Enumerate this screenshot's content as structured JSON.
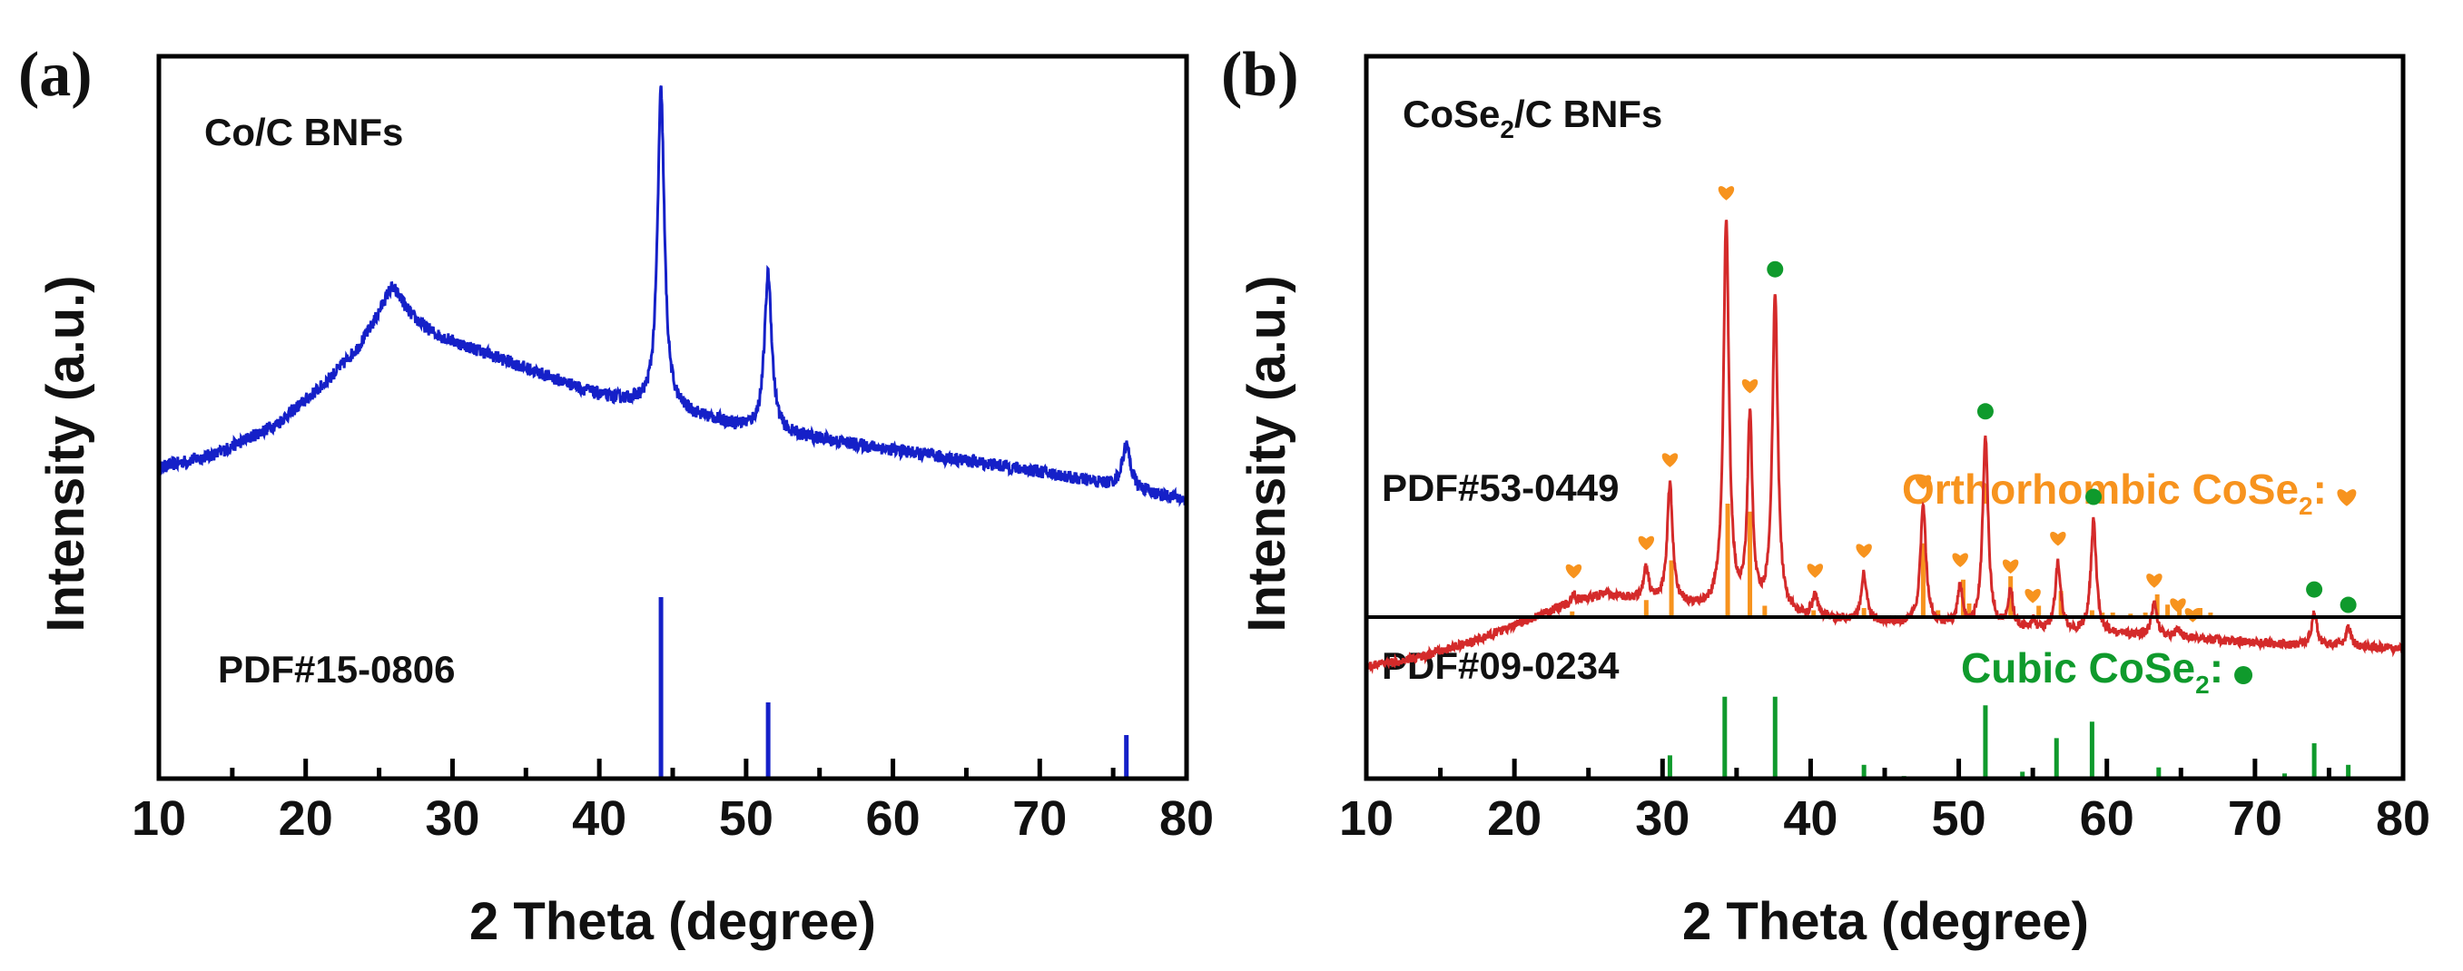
{
  "colors": {
    "co": "#1520c8",
    "cose2": "#d42a2a",
    "ortho": "#f7931e",
    "cubic": "#0f9a2c",
    "axis": "#000000"
  },
  "chart_data": [
    {
      "panel": "(a)",
      "type": "line",
      "sample_label": "Co/C BNFs",
      "xlabel": "2 Theta (degree)",
      "ylabel": "Intensity (a.u.)",
      "xlim": [
        10,
        80
      ],
      "xticks": [
        10,
        20,
        30,
        40,
        50,
        60,
        70,
        80
      ],
      "ylim": [
        0,
        1
      ],
      "series": [
        {
          "name": "Co/C BNFs",
          "color_key": "co",
          "background": [
            [
              10,
              0.43
            ],
            [
              14,
              0.45
            ],
            [
              18,
              0.49
            ],
            [
              21,
              0.54
            ],
            [
              23.5,
              0.59
            ],
            [
              25.8,
              0.65
            ],
            [
              27,
              0.63
            ],
            [
              29,
              0.61
            ],
            [
              32,
              0.59
            ],
            [
              36,
              0.56
            ],
            [
              40,
              0.53
            ],
            [
              43.5,
              0.515
            ],
            [
              45,
              0.51
            ],
            [
              48,
              0.495
            ],
            [
              51,
              0.48
            ],
            [
              55,
              0.47
            ],
            [
              60,
              0.455
            ],
            [
              65,
              0.44
            ],
            [
              70,
              0.425
            ],
            [
              75,
              0.405
            ],
            [
              80,
              0.385
            ]
          ],
          "peaks": [
            {
              "x": 26.0,
              "height": 0.03,
              "width": 1.2
            },
            {
              "x": 44.2,
              "height": 0.44,
              "width": 0.28
            },
            {
              "x": 51.5,
              "height": 0.22,
              "width": 0.3
            },
            {
              "x": 75.9,
              "height": 0.06,
              "width": 0.35
            }
          ],
          "noise": 0.009
        }
      ],
      "references": [
        {
          "label": "PDF#15-0806",
          "color_key": "co",
          "lines": [
            {
              "x": 44.2,
              "i": 1.0
            },
            {
              "x": 51.5,
              "i": 0.42
            },
            {
              "x": 75.9,
              "i": 0.24
            }
          ]
        }
      ]
    },
    {
      "panel": "(b)",
      "type": "line",
      "sample_label": "CoSe2/C BNFs",
      "sample_label_main": "CoSe",
      "sample_label_sub": "2",
      "sample_label_rest": "/C BNFs",
      "xlabel": "2 Theta (degree)",
      "ylabel": "Intensity (a.u.)",
      "xlim": [
        10,
        80
      ],
      "xticks": [
        10,
        20,
        30,
        40,
        50,
        60,
        70,
        80
      ],
      "ylim": [
        0,
        1
      ],
      "series": [
        {
          "name": "CoSe2/C BNFs",
          "color_key": "cose2",
          "background": [
            [
              10,
              0.155
            ],
            [
              14,
              0.17
            ],
            [
              18,
              0.195
            ],
            [
              21,
              0.22
            ],
            [
              23.5,
              0.24
            ],
            [
              26,
              0.255
            ],
            [
              29,
              0.245
            ],
            [
              33,
              0.235
            ],
            [
              38,
              0.225
            ],
            [
              45,
              0.215
            ],
            [
              55,
              0.205
            ],
            [
              65,
              0.195
            ],
            [
              72,
              0.185
            ],
            [
              80,
              0.18
            ]
          ],
          "peaks": [
            {
              "x": 24.0,
              "height": 0.012,
              "width": 0.2
            },
            {
              "x": 28.9,
              "height": 0.045,
              "width": 0.2
            },
            {
              "x": 30.5,
              "height": 0.165,
              "width": 0.22
            },
            {
              "x": 34.3,
              "height": 0.54,
              "width": 0.22
            },
            {
              "x": 35.9,
              "height": 0.265,
              "width": 0.2
            },
            {
              "x": 37.6,
              "height": 0.44,
              "width": 0.22
            },
            {
              "x": 40.3,
              "height": 0.03,
              "width": 0.2
            },
            {
              "x": 43.6,
              "height": 0.065,
              "width": 0.22
            },
            {
              "x": 47.6,
              "height": 0.165,
              "width": 0.22
            },
            {
              "x": 50.1,
              "height": 0.055,
              "width": 0.2
            },
            {
              "x": 51.8,
              "height": 0.265,
              "width": 0.22
            },
            {
              "x": 53.5,
              "height": 0.05,
              "width": 0.2
            },
            {
              "x": 55.0,
              "height": 0.012,
              "width": 0.2
            },
            {
              "x": 56.7,
              "height": 0.095,
              "width": 0.22
            },
            {
              "x": 59.1,
              "height": 0.155,
              "width": 0.22
            },
            {
              "x": 63.2,
              "height": 0.045,
              "width": 0.22
            },
            {
              "x": 64.8,
              "height": 0.012,
              "width": 0.2
            },
            {
              "x": 74.0,
              "height": 0.045,
              "width": 0.22
            },
            {
              "x": 76.3,
              "height": 0.025,
              "width": 0.22
            }
          ],
          "noise": 0.006
        }
      ],
      "references": [
        {
          "label": "PDF#53-0449",
          "phase_label": "Orthorhombic  CoSe",
          "phase_sub": "2",
          "phase_suffix": ":",
          "phase_marker": "heart",
          "color_key": "ortho",
          "lines": [
            {
              "x": 23.9,
              "i": 0.05
            },
            {
              "x": 28.9,
              "i": 0.15
            },
            {
              "x": 30.6,
              "i": 0.5
            },
            {
              "x": 34.4,
              "i": 1.0
            },
            {
              "x": 35.9,
              "i": 0.93
            },
            {
              "x": 36.9,
              "i": 0.1
            },
            {
              "x": 40.2,
              "i": 0.06
            },
            {
              "x": 43.6,
              "i": 0.08
            },
            {
              "x": 47.6,
              "i": 0.65
            },
            {
              "x": 48.6,
              "i": 0.06
            },
            {
              "x": 50.3,
              "i": 0.33
            },
            {
              "x": 50.7,
              "i": 0.12
            },
            {
              "x": 53.5,
              "i": 0.36
            },
            {
              "x": 55.4,
              "i": 0.1
            },
            {
              "x": 56.9,
              "i": 0.23
            },
            {
              "x": 59.0,
              "i": 0.06
            },
            {
              "x": 59.7,
              "i": 0.04
            },
            {
              "x": 60.4,
              "i": 0.04
            },
            {
              "x": 61.6,
              "i": 0.03
            },
            {
              "x": 62.6,
              "i": 0.04
            },
            {
              "x": 63.4,
              "i": 0.2
            },
            {
              "x": 64.1,
              "i": 0.11
            },
            {
              "x": 64.9,
              "i": 0.09
            },
            {
              "x": 65.6,
              "i": 0.06
            },
            {
              "x": 66.3,
              "i": 0.08
            },
            {
              "x": 67.0,
              "i": 0.04
            }
          ]
        },
        {
          "label": "PDF#09-0234",
          "phase_label": "Cubic  CoSe",
          "phase_sub": "2",
          "phase_suffix": ":",
          "phase_marker": "dot",
          "color_key": "cubic",
          "lines": [
            {
              "x": 30.5,
              "i": 0.27
            },
            {
              "x": 34.2,
              "i": 0.95
            },
            {
              "x": 37.6,
              "i": 0.95
            },
            {
              "x": 43.6,
              "i": 0.16
            },
            {
              "x": 46.3,
              "i": 0.03
            },
            {
              "x": 51.8,
              "i": 0.85
            },
            {
              "x": 54.3,
              "i": 0.08
            },
            {
              "x": 56.6,
              "i": 0.47
            },
            {
              "x": 59.0,
              "i": 0.66
            },
            {
              "x": 63.5,
              "i": 0.13
            },
            {
              "x": 72.0,
              "i": 0.06
            },
            {
              "x": 74.0,
              "i": 0.41
            },
            {
              "x": 76.3,
              "i": 0.16
            }
          ]
        }
      ],
      "markers": [
        {
          "type": "heart",
          "x": 24.0
        },
        {
          "type": "heart",
          "x": 28.9
        },
        {
          "type": "heart",
          "x": 30.5
        },
        {
          "type": "heart",
          "x": 34.3
        },
        {
          "type": "heart",
          "x": 35.9
        },
        {
          "type": "dot",
          "x": 37.6
        },
        {
          "type": "heart",
          "x": 40.3
        },
        {
          "type": "heart",
          "x": 43.6
        },
        {
          "type": "heart",
          "x": 47.6
        },
        {
          "type": "heart",
          "x": 50.1
        },
        {
          "type": "dot",
          "x": 51.8
        },
        {
          "type": "heart",
          "x": 53.5
        },
        {
          "type": "heart",
          "x": 55.0
        },
        {
          "type": "heart",
          "x": 56.7
        },
        {
          "type": "dot",
          "x": 59.1
        },
        {
          "type": "heart",
          "x": 63.2
        },
        {
          "type": "heart",
          "x": 64.8
        },
        {
          "type": "heart",
          "x": 65.8
        },
        {
          "type": "dot",
          "x": 74.0
        },
        {
          "type": "dot",
          "x": 76.3
        }
      ]
    }
  ]
}
